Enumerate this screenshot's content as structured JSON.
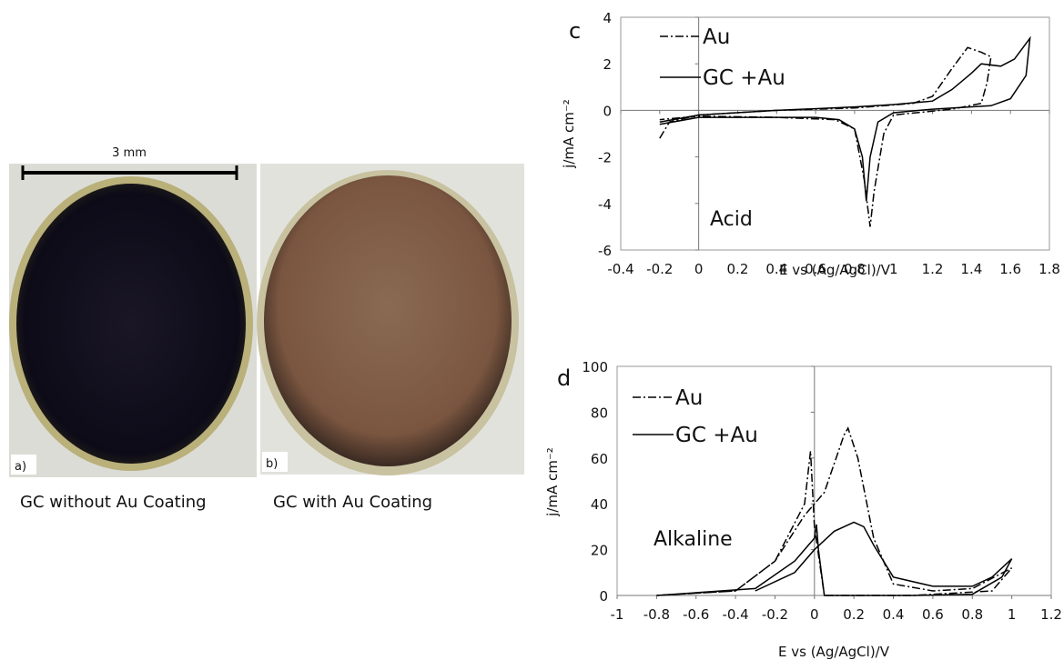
{
  "photos": {
    "scale_label": "3 mm",
    "panel_a": "a)",
    "panel_b": "b)",
    "caption_a": "GC without Au Coating",
    "caption_b": "GC with Au Coating"
  },
  "chart_data": [
    {
      "type": "line",
      "panel": "c",
      "annotation": "Acid",
      "xlabel": "E vs (Ag/AgCl)/V",
      "ylabel": "j/mA cm⁻²",
      "xlim": [
        -0.4,
        1.8
      ],
      "xticks": [
        -0.4,
        -0.2,
        0,
        0.2,
        0.4,
        0.6,
        0.8,
        1,
        1.2,
        1.4,
        1.6,
        1.8
      ],
      "ylim": [
        -6,
        4
      ],
      "yticks": [
        -6,
        -4,
        -2,
        0,
        2,
        4
      ],
      "grid": false,
      "series": [
        {
          "name": "Au",
          "color": "#000000",
          "dash": "dash-dot",
          "x": [
            -0.2,
            -0.15,
            0,
            0.4,
            0.8,
            1.1,
            1.2,
            1.3,
            1.38,
            1.45,
            1.5,
            1.48,
            1.45,
            1.3,
            1,
            0.95,
            0.9,
            0.88,
            0.85,
            0.8,
            0.7,
            0.4,
            0,
            -0.2
          ],
          "values": [
            -1.2,
            -0.5,
            -0.2,
            0,
            0.1,
            0.3,
            0.6,
            1.8,
            2.7,
            2.5,
            2.3,
            1.2,
            0.3,
            0.05,
            -0.2,
            -1,
            -3.5,
            -5,
            -3,
            -0.8,
            -0.4,
            -0.3,
            -0.25,
            -0.4
          ]
        },
        {
          "name": "GC +Au",
          "color": "#000000",
          "dash": "solid",
          "x": [
            -0.2,
            0,
            0.4,
            0.8,
            1,
            1.2,
            1.3,
            1.4,
            1.45,
            1.55,
            1.62,
            1.7,
            1.68,
            1.6,
            1.5,
            1.2,
            1,
            0.92,
            0.88,
            0.86,
            0.84,
            0.8,
            0.72,
            0.6,
            0.3,
            0,
            -0.2
          ],
          "values": [
            -0.5,
            -0.2,
            0,
            0.15,
            0.25,
            0.4,
            0.9,
            1.6,
            2,
            1.9,
            2.2,
            3.1,
            1.5,
            0.5,
            0.2,
            0.05,
            -0.1,
            -0.5,
            -2,
            -3.9,
            -2,
            -0.8,
            -0.4,
            -0.3,
            -0.3,
            -0.3,
            -0.6
          ]
        }
      ]
    },
    {
      "type": "line",
      "panel": "d",
      "annotation": "Alkaline",
      "xlabel": "E vs (Ag/AgCl)/V",
      "ylabel": "j/mA cm⁻²",
      "xlim": [
        -1,
        1.2
      ],
      "xticks": [
        -1,
        -0.8,
        -0.6,
        -0.4,
        -0.2,
        0,
        0.2,
        0.4,
        0.6,
        0.8,
        1,
        1.2
      ],
      "ylim": [
        0,
        100
      ],
      "yticks": [
        0,
        20,
        40,
        60,
        80,
        100
      ],
      "grid": false,
      "series": [
        {
          "name": "Au",
          "color": "#000000",
          "dash": "dash-dot",
          "x": [
            -0.8,
            -0.4,
            -0.2,
            -0.05,
            0.05,
            0.15,
            0.17,
            0.22,
            0.3,
            0.4,
            0.6,
            0.8,
            1,
            0.9,
            0.5,
            0.05,
            0,
            -0.02,
            -0.05,
            -0.2,
            -0.4,
            -0.8
          ],
          "values": [
            0,
            2,
            15,
            35,
            45,
            70,
            73,
            60,
            25,
            5,
            2,
            3,
            12,
            2,
            0,
            0,
            30,
            63,
            40,
            15,
            2,
            0
          ]
        },
        {
          "name": "GC +Au",
          "color": "#000000",
          "dash": "solid",
          "x": [
            -0.3,
            -0.1,
            0,
            0.1,
            0.2,
            0.25,
            0.3,
            0.4,
            0.6,
            0.8,
            0.9,
            1,
            0.95,
            0.8,
            0.5,
            0.05,
            0.02,
            0.01,
            0,
            -0.1,
            -0.3,
            -0.8
          ],
          "values": [
            2,
            10,
            20,
            28,
            32,
            30,
            22,
            8,
            4,
            4,
            8,
            16,
            8,
            0.5,
            0,
            0,
            20,
            31,
            25,
            15,
            3,
            0
          ]
        }
      ]
    }
  ]
}
